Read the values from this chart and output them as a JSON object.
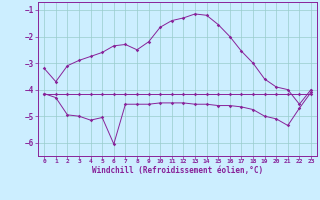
{
  "xlabel": "Windchill (Refroidissement éolien,°C)",
  "bg_color": "#cceeff",
  "line_color": "#882299",
  "grid_color": "#99cccc",
  "ylim": [
    -6.5,
    -0.7
  ],
  "xlim": [
    -0.5,
    23.5
  ],
  "yticks": [
    -6,
    -5,
    -4,
    -3,
    -2,
    -1
  ],
  "xticks": [
    0,
    1,
    2,
    3,
    4,
    5,
    6,
    7,
    8,
    9,
    10,
    11,
    12,
    13,
    14,
    15,
    16,
    17,
    18,
    19,
    20,
    21,
    22,
    23
  ],
  "line1_y": [
    -3.2,
    -3.7,
    -3.1,
    -2.9,
    -2.75,
    -2.6,
    -2.35,
    -2.3,
    -2.5,
    -2.2,
    -1.65,
    -1.4,
    -1.3,
    -1.15,
    -1.2,
    -1.55,
    -2.0,
    -2.55,
    -3.0,
    -3.6,
    -3.9,
    -4.0,
    -4.55,
    -4.0
  ],
  "line2_y": [
    -4.15,
    -4.15,
    -4.15,
    -4.15,
    -4.15,
    -4.15,
    -4.15,
    -4.15,
    -4.15,
    -4.15,
    -4.15,
    -4.15,
    -4.15,
    -4.15,
    -4.15,
    -4.15,
    -4.15,
    -4.15,
    -4.15,
    -4.15,
    -4.15,
    -4.15,
    -4.15,
    -4.15
  ],
  "line3_y": [
    -4.15,
    -4.3,
    -4.95,
    -5.0,
    -5.15,
    -5.05,
    -6.05,
    -4.55,
    -4.55,
    -4.55,
    -4.5,
    -4.5,
    -4.5,
    -4.55,
    -4.55,
    -4.6,
    -4.6,
    -4.65,
    -4.75,
    -5.0,
    -5.1,
    -5.35,
    -4.7,
    -4.1
  ]
}
